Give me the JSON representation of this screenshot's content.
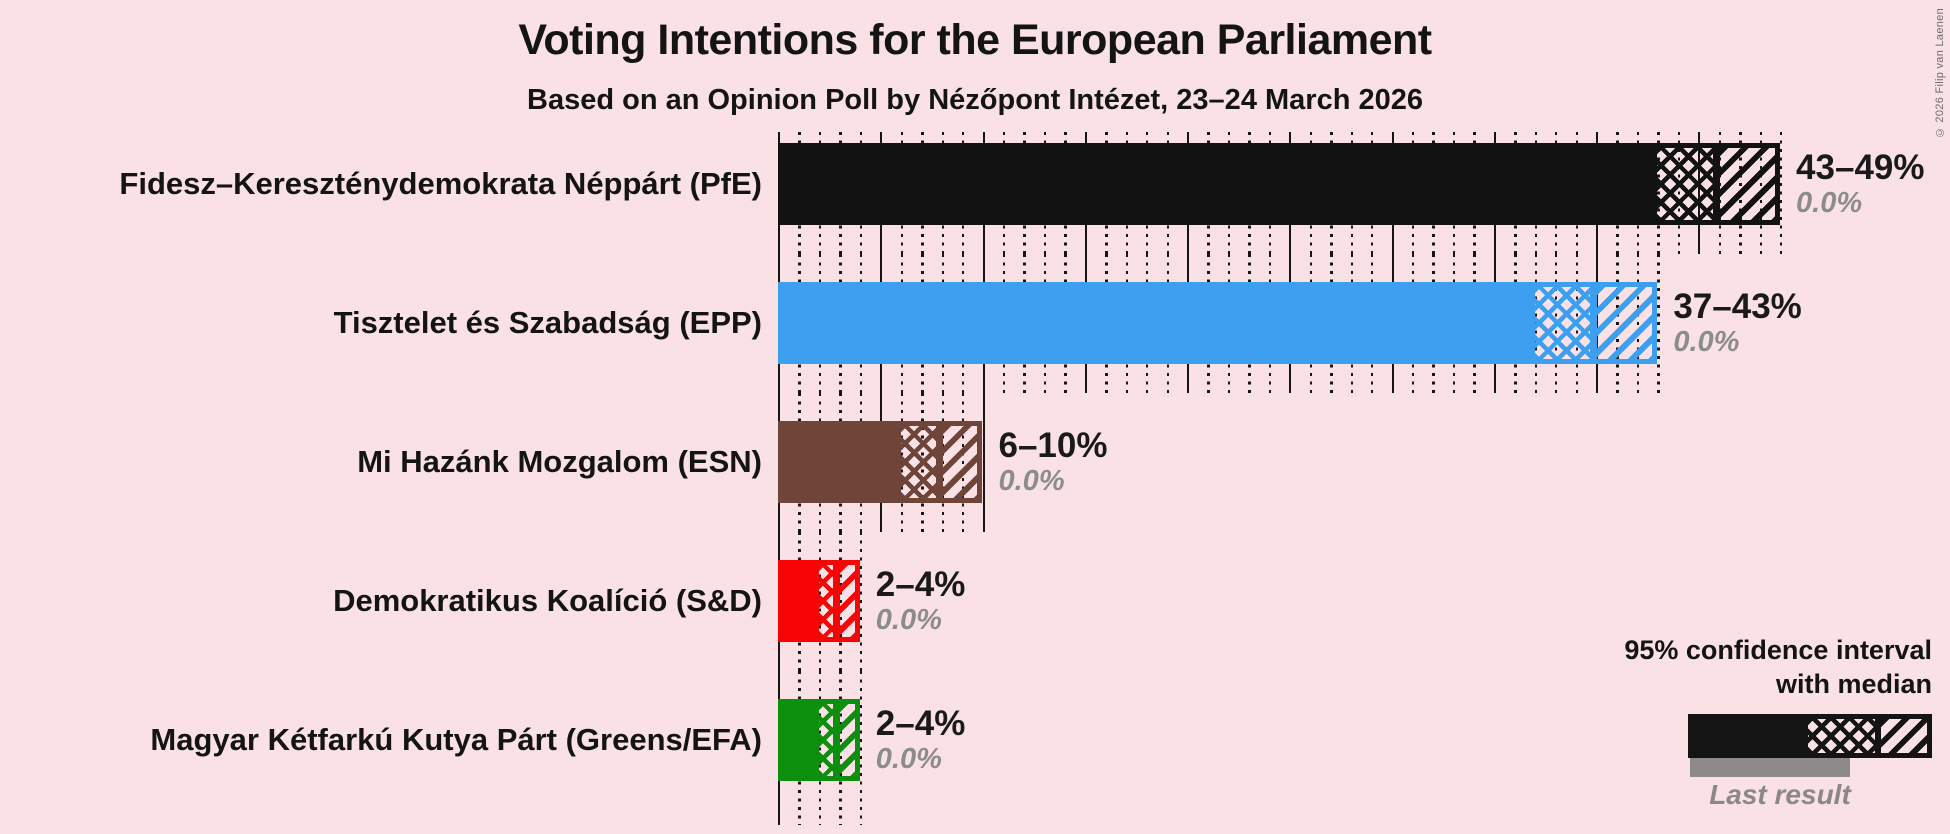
{
  "header": {
    "title": "Voting Intentions for the European Parliament",
    "subtitle": "Based on an Opinion Poll by Nézőpont Intézet, 23–24 March 2026"
  },
  "copyright": "© 2026 Filip van Laenen",
  "legend": {
    "title_line1": "95% confidence interval",
    "title_line2": "with median",
    "last_result_label": "Last result",
    "sample_color": "#141414",
    "last_result_color": "#8f8a8a"
  },
  "colors": {
    "background": "#f9e1e6",
    "grid": "#161616",
    "text": "#141414",
    "muted_text": "#8c8c8c"
  },
  "chart_data": {
    "type": "bar",
    "orientation": "horizontal",
    "unit": "%",
    "xlim": [
      0,
      49
    ],
    "grid": {
      "solid_step_pct": 5,
      "dotted_step_pct": 1
    },
    "legend_position": "bottom-right",
    "bars": [
      {
        "party": "Fidesz–Kereszténydemokrata Néppárt (PfE)",
        "ci_low": 43,
        "ci_high": 49,
        "median": 46,
        "range_label": "43–49%",
        "last_result": 0.0,
        "last_result_label": "0.0%",
        "color": "#121212"
      },
      {
        "party": "Tisztelet és Szabadság (EPP)",
        "ci_low": 37,
        "ci_high": 43,
        "median": 40,
        "range_label": "37–43%",
        "last_result": 0.0,
        "last_result_label": "0.0%",
        "color": "#3d9ff0"
      },
      {
        "party": "Mi Hazánk Mozgalom (ESN)",
        "ci_low": 6,
        "ci_high": 10,
        "median": 8,
        "range_label": "6–10%",
        "last_result": 0.0,
        "last_result_label": "0.0%",
        "color": "#6f4539"
      },
      {
        "party": "Demokratikus Koalíció (S&D)",
        "ci_low": 2,
        "ci_high": 4,
        "median": 3,
        "range_label": "2–4%",
        "last_result": 0.0,
        "last_result_label": "0.0%",
        "color": "#f70505"
      },
      {
        "party": "Magyar Kétfarkú Kutya Párt (Greens/EFA)",
        "ci_low": 2,
        "ci_high": 4,
        "median": 3,
        "range_label": "2–4%",
        "last_result": 0.0,
        "last_result_label": "0.0%",
        "color": "#0c8f0c"
      }
    ]
  }
}
